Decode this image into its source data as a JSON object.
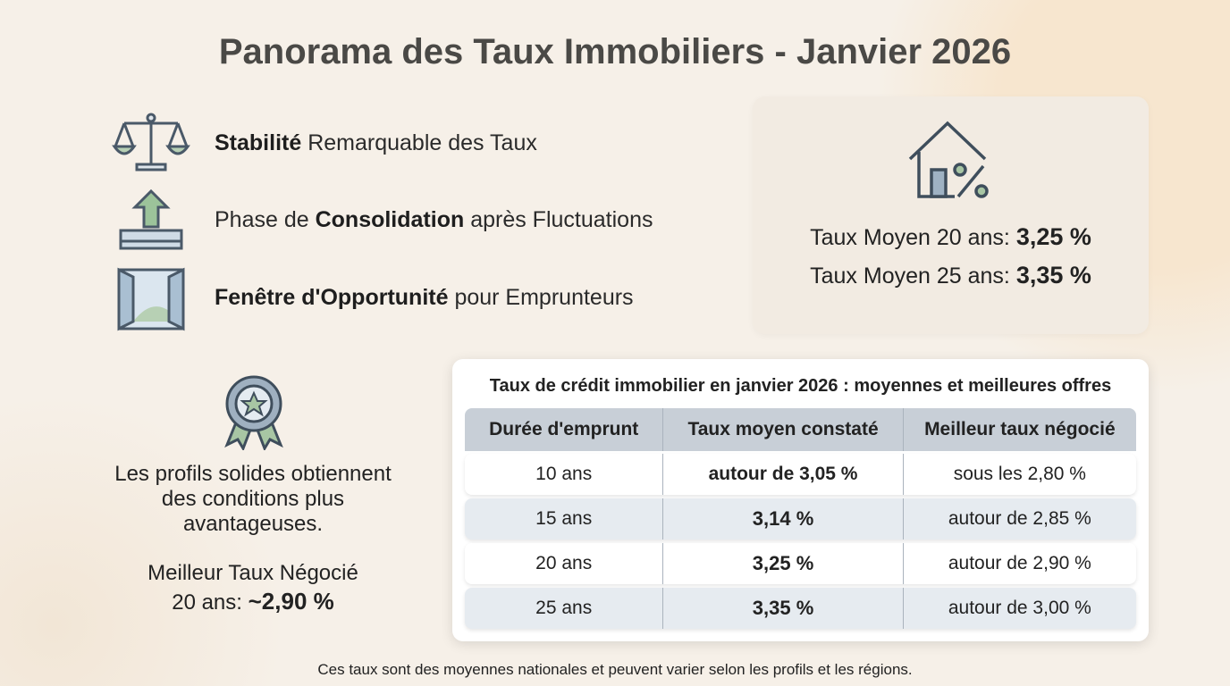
{
  "title": "Panorama des Taux Immobiliers - Janvier 2026",
  "highlights": [
    {
      "parts": [
        {
          "text": "Stabilité",
          "bold": true
        },
        {
          "text": "Remarquable des Taux"
        }
      ]
    },
    {
      "parts": [
        {
          "text": "Phase de"
        },
        {
          "text": "Consolidation",
          "bold": true
        },
        {
          "text": "après Fluctuations"
        }
      ]
    },
    {
      "parts": [
        {
          "text": "Fenêtre d'Opportunité",
          "bold": true
        },
        {
          "text": "pour Emprunteurs"
        }
      ]
    }
  ],
  "average_card": {
    "items": [
      {
        "label": "Taux Moyen 20 ans:",
        "value": "3,25 %"
      },
      {
        "label": "Taux Moyen 25 ans:",
        "value": "3,35 %"
      }
    ]
  },
  "profile_panel": {
    "text": "Les profils solides obtiennent des conditions plus avantageuses.",
    "best_label_lines": [
      "Meilleur Taux Négocié",
      "20 ans:"
    ],
    "best_value": "~2,90 %"
  },
  "table": {
    "title": "Taux de crédit immobilier en janvier 2026 : moyennes et meilleures offres",
    "headers": [
      "Durée d'emprunt",
      "Taux moyen constaté",
      "Meilleur taux négocié"
    ],
    "rows": [
      [
        "10 ans",
        "autour de 3,05 %",
        "sous les 2,80 %"
      ],
      [
        "15 ans",
        "3,14 %",
        "autour de 2,85 %"
      ],
      [
        "20 ans",
        "3,25 %",
        "autour de 2,90 %"
      ],
      [
        "25 ans",
        "3,35 %",
        "autour de 3,00 %"
      ]
    ]
  },
  "footnote": "Ces taux sont des moyennes nationales et peuvent varier selon les profils et les régions."
}
